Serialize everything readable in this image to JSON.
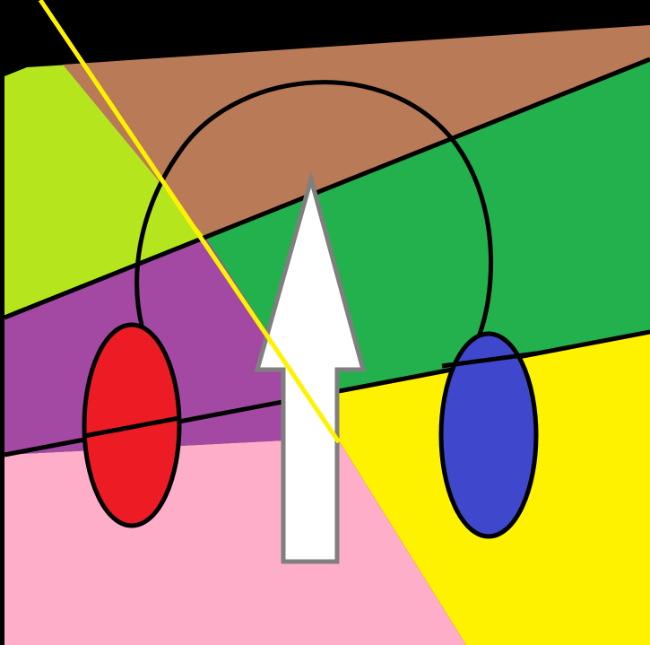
{
  "scene": {
    "description_tags": [
      "headphones-icon",
      "upload-arrow-icon"
    ],
    "colors": {
      "background": "#000000",
      "lime": "#b5e61d",
      "brown": "#b97a57",
      "green": "#22b14c",
      "purple": "#a349a4",
      "pink": "#ffaec9",
      "yellow": "#fff200",
      "red": "#ed1c24",
      "blue": "#3f48cc",
      "arrow_fill": "#ffffff",
      "arrow_stroke": "#7f7f7f",
      "outline": "#000000",
      "yellow_line": "#fff200"
    }
  }
}
